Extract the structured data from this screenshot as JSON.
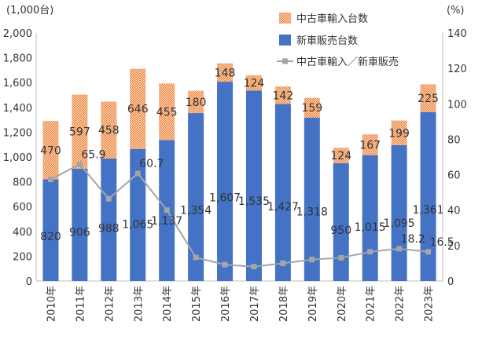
{
  "chart_data": {
    "type": "bar",
    "stacked": true,
    "categories": [
      "2010年",
      "2011年",
      "2012年",
      "2013年",
      "2014年",
      "2015年",
      "2016年",
      "2017年",
      "2018年",
      "2019年",
      "2020年",
      "2021年",
      "2022年",
      "2023年"
    ],
    "series": [
      {
        "name": "新車販売台数",
        "axis": "left",
        "color": "#4472C4",
        "values": [
          820,
          906,
          988,
          1065,
          1137,
          1354,
          1607,
          1535,
          1427,
          1318,
          950,
          1015,
          1095,
          1361
        ]
      },
      {
        "name": "中古車輸入台数",
        "axis": "left",
        "color": "#ED7D31",
        "pattern": "dotted",
        "values": [
          470,
          597,
          458,
          646,
          455,
          180,
          148,
          124,
          142,
          159,
          124,
          167,
          199,
          225
        ]
      },
      {
        "name": "中古車輸入／新車販売",
        "axis": "right",
        "type": "line",
        "color": "#A5A5A5",
        "values": [
          57.3,
          65.9,
          46.4,
          60.7,
          40.0,
          13.3,
          9.2,
          8.1,
          10.0,
          12.1,
          13.1,
          16.5,
          18.2,
          16.5
        ],
        "labeled_values": [
          "",
          "65.9",
          "",
          "60.7",
          "",
          "",
          "",
          "",
          "",
          "",
          "",
          "",
          "18.2",
          "16.5"
        ]
      }
    ],
    "left_axis": {
      "unit": "(1,000台)",
      "ylim": [
        0,
        2000
      ],
      "ticks": [
        "0",
        "200",
        "400",
        "600",
        "800",
        "1,000",
        "1,200",
        "1,400",
        "1,600",
        "1,800",
        "2,000"
      ]
    },
    "right_axis": {
      "unit": "(%)",
      "ylim": [
        0,
        140
      ],
      "ticks": [
        "0",
        "20",
        "40",
        "60",
        "80",
        "100",
        "120",
        "140"
      ]
    },
    "legend": {
      "placement": "top-right"
    },
    "grid": false
  }
}
